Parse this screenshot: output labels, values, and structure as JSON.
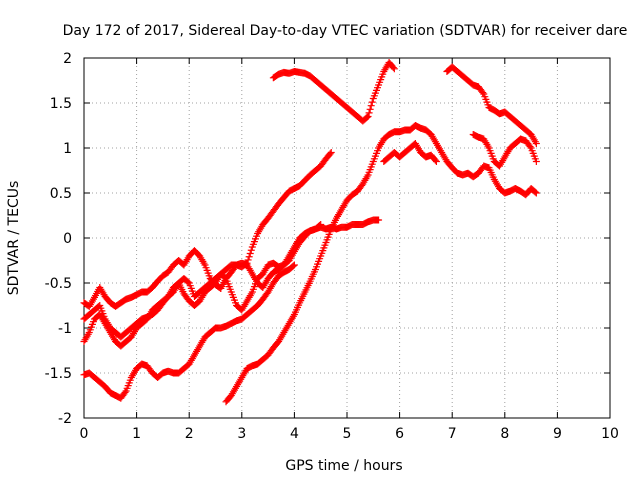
{
  "chart_data": {
    "type": "scatter",
    "title": "Day 172 of 2017, Sidereal Day-to-day VTEC variation (SDTVAR) for receiver dare",
    "xlabel": "GPS time / hours",
    "ylabel": "SDTVAR / TECUs",
    "xlim": [
      0,
      10
    ],
    "ylim": [
      -2,
      2
    ],
    "xticks": [
      "0",
      "1",
      "2",
      "3",
      "4",
      "5",
      "6",
      "7",
      "8",
      "9",
      "10"
    ],
    "yticks": [
      "-2",
      "-1.5",
      "-1",
      "-0.5",
      "0",
      "0.5",
      "1",
      "1.5",
      "2"
    ],
    "xtick_values": [
      0,
      1,
      2,
      3,
      4,
      5,
      6,
      7,
      8,
      9,
      10
    ],
    "ytick_values": [
      -2,
      -1.5,
      -1,
      -0.5,
      0,
      0.5,
      1,
      1.5,
      2
    ],
    "grid": true,
    "marker": "+",
    "color": "#ff0000",
    "series": [
      {
        "x": [
          0.0,
          0.1,
          0.2,
          0.3,
          0.4,
          0.5,
          0.6,
          0.7,
          0.8,
          0.9,
          1.0,
          1.1,
          1.2,
          1.3,
          1.4,
          1.5,
          1.6,
          1.7,
          1.8,
          1.9,
          2.0,
          2.1,
          2.2,
          2.3,
          2.4,
          2.5,
          2.6
        ],
        "y": [
          -0.72,
          -0.76,
          -0.66,
          -0.55,
          -0.65,
          -0.72,
          -0.76,
          -0.72,
          -0.68,
          -0.66,
          -0.63,
          -0.6,
          -0.6,
          -0.55,
          -0.48,
          -0.42,
          -0.38,
          -0.3,
          -0.25,
          -0.3,
          -0.2,
          -0.14,
          -0.2,
          -0.3,
          -0.45,
          -0.52,
          -0.56
        ]
      },
      {
        "x": [
          2.6,
          2.7,
          2.8,
          2.9,
          3.0,
          3.1,
          3.2,
          3.3,
          3.4,
          3.5,
          3.6,
          3.7,
          3.8,
          3.9,
          4.0,
          4.1,
          4.2,
          4.3,
          4.4,
          4.5,
          4.6,
          4.7
        ],
        "y": [
          -0.56,
          -0.45,
          -0.38,
          -0.3,
          -0.32,
          -0.28,
          -0.1,
          0.05,
          0.15,
          0.22,
          0.3,
          0.38,
          0.45,
          0.52,
          0.55,
          0.58,
          0.64,
          0.7,
          0.75,
          0.8,
          0.88,
          0.95
        ]
      },
      {
        "x": [
          0.0,
          0.1,
          0.2,
          0.3,
          0.4,
          0.5,
          0.6,
          0.7,
          0.8,
          0.9,
          1.0,
          1.1,
          1.2,
          1.3,
          1.4,
          1.5,
          1.6,
          1.7,
          1.8,
          1.9,
          2.0,
          2.1,
          2.2
        ],
        "y": [
          -0.9,
          -0.85,
          -0.8,
          -0.75,
          -0.9,
          -1.0,
          -1.05,
          -1.1,
          -1.05,
          -1.0,
          -0.95,
          -0.9,
          -0.88,
          -0.85,
          -0.8,
          -0.72,
          -0.65,
          -0.6,
          -0.5,
          -0.45,
          -0.5,
          -0.65,
          -0.6
        ]
      },
      {
        "x": [
          2.2,
          2.3,
          2.4,
          2.5,
          2.6,
          2.7,
          2.8,
          2.9,
          3.0,
          3.1,
          3.2,
          3.3,
          3.4,
          3.5,
          3.6,
          3.7,
          3.8,
          3.9,
          4.0,
          4.1,
          4.2,
          4.3,
          4.4,
          4.5,
          4.6,
          4.7,
          4.8,
          4.9,
          5.0,
          5.1,
          5.2,
          5.3,
          5.4,
          5.5,
          5.6
        ],
        "y": [
          -0.6,
          -0.55,
          -0.5,
          -0.45,
          -0.4,
          -0.35,
          -0.3,
          -0.3,
          -0.28,
          -0.3,
          -0.4,
          -0.5,
          -0.55,
          -0.45,
          -0.38,
          -0.35,
          -0.3,
          -0.2,
          -0.1,
          0.0,
          0.05,
          0.08,
          0.1,
          0.12,
          0.1,
          0.12,
          0.1,
          0.12,
          0.12,
          0.15,
          0.15,
          0.15,
          0.18,
          0.2,
          0.2
        ]
      },
      {
        "x": [
          0.0,
          0.1,
          0.2,
          0.3,
          0.4,
          0.5,
          0.6,
          0.7,
          0.8,
          0.9,
          1.0,
          1.1,
          1.2,
          1.3,
          1.4,
          1.5,
          1.6,
          1.7,
          1.8,
          1.9,
          2.0,
          2.1,
          2.2,
          2.3,
          2.4,
          2.5,
          2.6,
          2.7,
          2.8,
          2.9,
          3.0,
          3.1,
          3.2,
          3.3,
          3.4,
          3.5,
          3.6,
          3.7,
          3.8,
          3.9,
          4.0,
          4.1,
          4.2,
          4.3,
          4.4,
          4.5
        ],
        "y": [
          -1.15,
          -1.05,
          -0.9,
          -0.85,
          -0.95,
          -1.05,
          -1.15,
          -1.2,
          -1.15,
          -1.1,
          -1.0,
          -0.95,
          -0.9,
          -0.8,
          -0.75,
          -0.7,
          -0.65,
          -0.55,
          -0.5,
          -0.62,
          -0.7,
          -0.75,
          -0.7,
          -0.6,
          -0.55,
          -0.5,
          -0.4,
          -0.45,
          -0.6,
          -0.75,
          -0.8,
          -0.7,
          -0.6,
          -0.45,
          -0.4,
          -0.3,
          -0.28,
          -0.32,
          -0.3,
          -0.25,
          -0.15,
          -0.05,
          0.02,
          0.08,
          0.1,
          0.15
        ]
      },
      {
        "x": [
          0.0,
          0.1,
          0.2,
          0.3,
          0.4,
          0.5,
          0.6,
          0.7,
          0.8,
          0.9,
          1.0,
          1.1,
          1.2,
          1.3,
          1.4,
          1.5,
          1.6,
          1.7,
          1.8,
          1.9,
          2.0,
          2.1,
          2.2,
          2.3,
          2.4,
          2.5,
          2.6,
          2.7,
          2.8,
          2.9,
          3.0,
          3.1,
          3.2,
          3.3,
          3.4,
          3.5,
          3.6,
          3.7,
          3.8,
          3.9,
          4.0
        ],
        "y": [
          -1.52,
          -1.5,
          -1.55,
          -1.6,
          -1.65,
          -1.72,
          -1.75,
          -1.78,
          -1.7,
          -1.55,
          -1.45,
          -1.4,
          -1.42,
          -1.5,
          -1.55,
          -1.5,
          -1.48,
          -1.5,
          -1.5,
          -1.45,
          -1.4,
          -1.3,
          -1.2,
          -1.1,
          -1.05,
          -1.0,
          -1.0,
          -0.98,
          -0.95,
          -0.92,
          -0.9,
          -0.85,
          -0.8,
          -0.75,
          -0.68,
          -0.6,
          -0.5,
          -0.42,
          -0.38,
          -0.35,
          -0.3
        ]
      },
      {
        "x": [
          2.7,
          2.8,
          2.9,
          3.0,
          3.1,
          3.2,
          3.3,
          3.4,
          3.5,
          3.6,
          3.7,
          3.8,
          3.9,
          4.0,
          4.1,
          4.2,
          4.3,
          4.4,
          4.5,
          4.6,
          4.7,
          4.8,
          4.9,
          5.0,
          5.1,
          5.2,
          5.3,
          5.4,
          5.5,
          5.6,
          5.7,
          5.8,
          5.9,
          6.0,
          6.1,
          6.2,
          6.3,
          6.4,
          6.5,
          6.6,
          6.7,
          6.8,
          6.9,
          7.0,
          7.1,
          7.2,
          7.3,
          7.4,
          7.5,
          7.6,
          7.7,
          7.8,
          7.9,
          8.0,
          8.1,
          8.2,
          8.3,
          8.4,
          8.5,
          8.6
        ],
        "y": [
          -1.82,
          -1.75,
          -1.65,
          -1.55,
          -1.45,
          -1.42,
          -1.4,
          -1.35,
          -1.3,
          -1.22,
          -1.15,
          -1.05,
          -0.95,
          -0.85,
          -0.72,
          -0.6,
          -0.48,
          -0.35,
          -0.2,
          -0.05,
          0.1,
          0.22,
          0.32,
          0.42,
          0.48,
          0.52,
          0.6,
          0.7,
          0.85,
          1.0,
          1.1,
          1.15,
          1.18,
          1.18,
          1.2,
          1.2,
          1.25,
          1.22,
          1.2,
          1.15,
          1.05,
          0.95,
          0.85,
          0.78,
          0.72,
          0.7,
          0.72,
          0.68,
          0.72,
          0.8,
          0.78,
          0.65,
          0.55,
          0.5,
          0.52,
          0.55,
          0.52,
          0.48,
          0.55,
          0.5
        ]
      },
      {
        "x": [
          5.7,
          5.8,
          5.9,
          6.0,
          6.1,
          6.2,
          6.3,
          6.4,
          6.5,
          6.6,
          6.7
        ],
        "y": [
          0.85,
          0.9,
          0.95,
          0.9,
          0.95,
          1.0,
          1.05,
          0.95,
          0.9,
          0.92,
          0.85
        ]
      },
      {
        "x": [
          3.6,
          3.7,
          3.8,
          3.9,
          4.0,
          4.1,
          4.2,
          4.3,
          4.4,
          4.5,
          4.6,
          4.7,
          4.8,
          4.9,
          5.0,
          5.1,
          5.2,
          5.3,
          5.4,
          5.5,
          5.6,
          5.7,
          5.8,
          5.9
        ],
        "y": [
          1.78,
          1.82,
          1.84,
          1.83,
          1.85,
          1.84,
          1.83,
          1.8,
          1.75,
          1.7,
          1.65,
          1.6,
          1.55,
          1.5,
          1.45,
          1.4,
          1.35,
          1.3,
          1.35,
          1.55,
          1.7,
          1.85,
          1.95,
          1.88
        ]
      },
      {
        "x": [
          6.9,
          7.0,
          7.1,
          7.2,
          7.3,
          7.4,
          7.5,
          7.6,
          7.7,
          7.8,
          7.9,
          8.0,
          8.1,
          8.2,
          8.3,
          8.4,
          8.5,
          8.6
        ],
        "y": [
          1.85,
          1.9,
          1.85,
          1.8,
          1.75,
          1.7,
          1.68,
          1.6,
          1.45,
          1.42,
          1.38,
          1.4,
          1.35,
          1.3,
          1.25,
          1.2,
          1.15,
          1.05
        ]
      },
      {
        "x": [
          7.4,
          7.5,
          7.6,
          7.7,
          7.8,
          7.9,
          8.0,
          8.1,
          8.2,
          8.3,
          8.4,
          8.5,
          8.6
        ],
        "y": [
          1.15,
          1.12,
          1.1,
          1.0,
          0.85,
          0.8,
          0.9,
          1.0,
          1.05,
          1.1,
          1.08,
          1.0,
          0.85
        ]
      }
    ]
  }
}
